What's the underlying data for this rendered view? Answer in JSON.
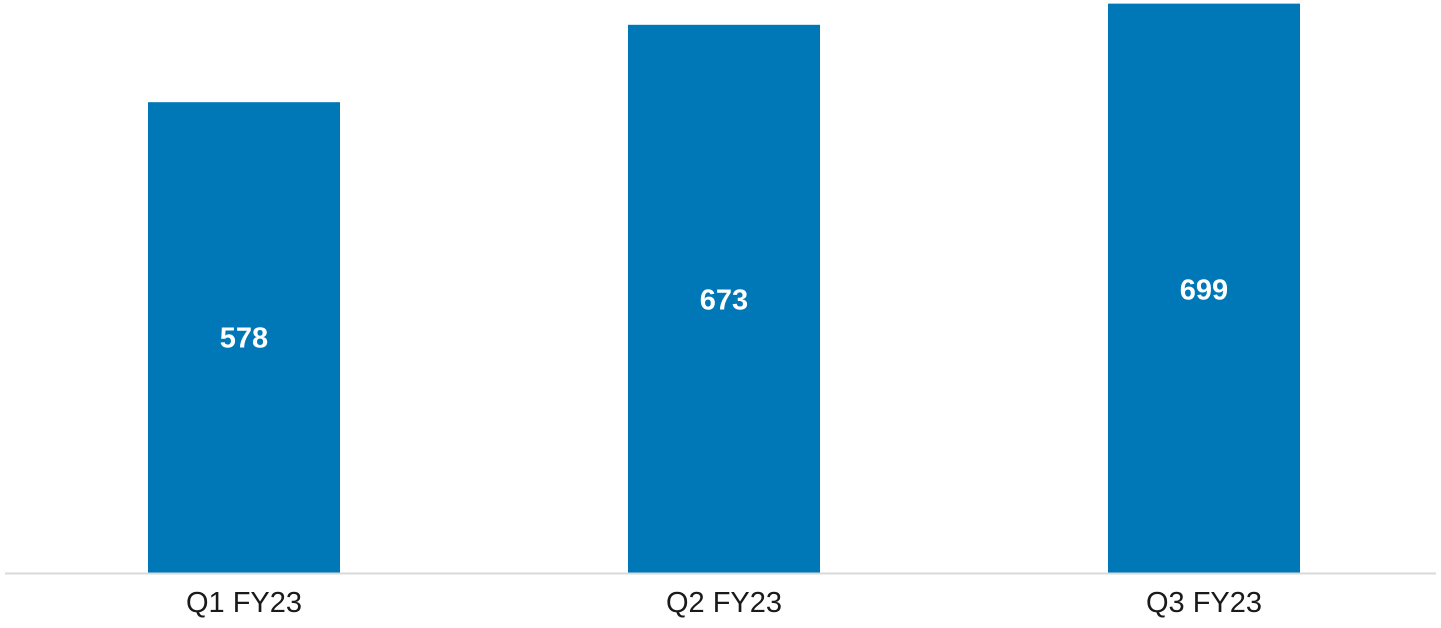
{
  "chart_data": {
    "type": "bar",
    "categories": [
      "Q1 FY23",
      "Q2 FY23",
      "Q3 FY23"
    ],
    "values": [
      578,
      673,
      699
    ],
    "data_labels": [
      "578",
      "673",
      "699"
    ],
    "title": "",
    "xlabel": "",
    "ylabel": "",
    "ylim": [
      0,
      701
    ],
    "grid": false,
    "legend": "none",
    "colors": {
      "bar": "#0077b6",
      "axis": "#d9d9d9",
      "label": "#ffffff",
      "tick": "#1a1a1a"
    }
  }
}
